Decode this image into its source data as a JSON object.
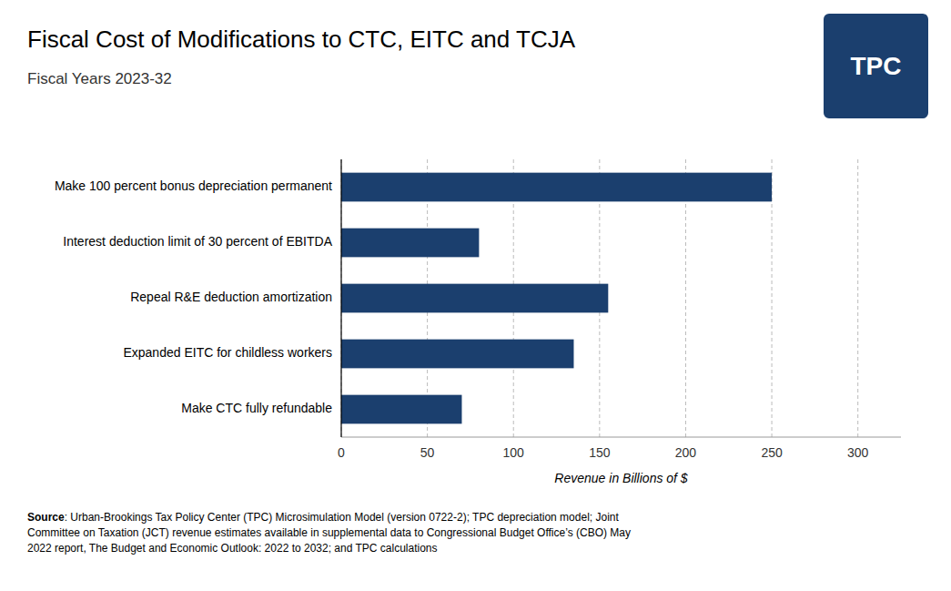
{
  "chart_data": {
    "type": "bar",
    "orientation": "horizontal",
    "title": "Fiscal Cost of Modifications to CTC, EITC and TCJA",
    "subtitle": "Fiscal Years 2023-32",
    "categories": [
      "Make CTC fully refundable",
      "Expanded EITC for childless workers",
      "Repeal R&E deduction amortization",
      "Interest deduction limit of 30 percent of EBITDA",
      "Make 100 percent bonus depreciation permanent"
    ],
    "values": [
      70,
      135,
      155,
      80,
      250
    ],
    "color": "#1b3f6e",
    "xlabel": "Revenue in Billions of $",
    "xlim": [
      0,
      325
    ],
    "xticks": [
      0,
      50,
      100,
      150,
      200,
      250,
      300
    ],
    "grid": true,
    "source_label": "Source",
    "source_text": ": Urban-Brookings Tax Policy Center (TPC) Microsimulation Model (version 0722-2); TPC depreciation model; Joint\nCommittee on Taxation (JCT) revenue estimates available in supplemental data to Congressional Budget Office’s (CBO) May\n2022 report, The Budget and Economic Outlook: 2022 to 2032; and TPC calculations",
    "logo": "TPC"
  }
}
